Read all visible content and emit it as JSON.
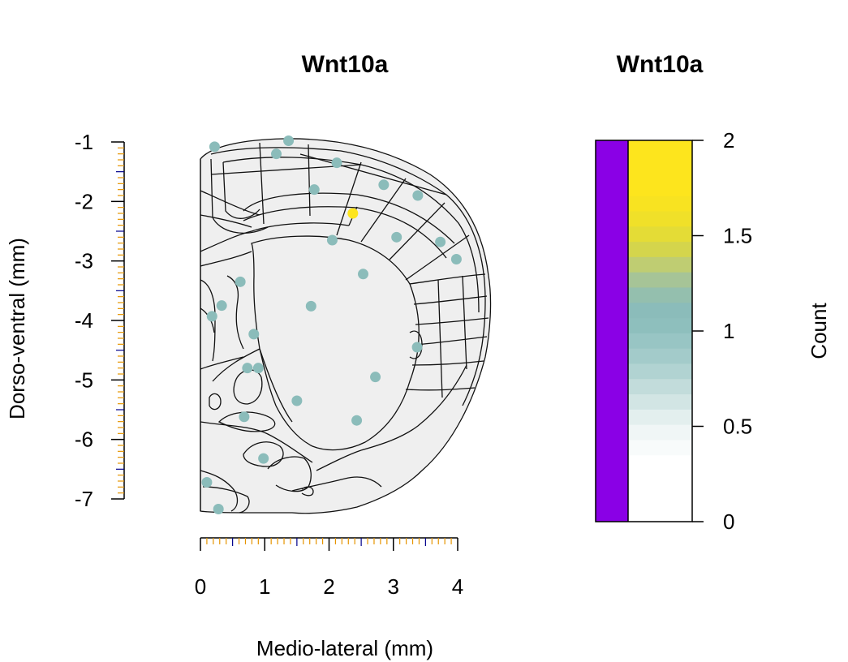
{
  "chart_data": [
    {
      "type": "scatter",
      "title": "Wnt10a",
      "xlabel": "Medio-lateral (mm)",
      "ylabel": "Dorso-ventral (mm)",
      "xlim": [
        0,
        4
      ],
      "ylim": [
        -7,
        -1
      ],
      "xticks": [
        0,
        1,
        2,
        3,
        4
      ],
      "yticks": [
        -1,
        -2,
        -3,
        -4,
        -5,
        -6,
        -7
      ],
      "point_colors": {
        "1": "#8bbcba",
        "2": "#fde51d"
      },
      "points": [
        {
          "x": 0.22,
          "y": -1.08,
          "count": 1
        },
        {
          "x": 1.18,
          "y": -1.2,
          "count": 1
        },
        {
          "x": 1.37,
          "y": -0.98,
          "count": 1
        },
        {
          "x": 2.12,
          "y": -1.35,
          "count": 1
        },
        {
          "x": 1.77,
          "y": -1.8,
          "count": 1
        },
        {
          "x": 2.85,
          "y": -1.72,
          "count": 1
        },
        {
          "x": 3.38,
          "y": -1.9,
          "count": 1
        },
        {
          "x": 2.37,
          "y": -2.2,
          "count": 2
        },
        {
          "x": 2.05,
          "y": -2.65,
          "count": 1
        },
        {
          "x": 3.05,
          "y": -2.6,
          "count": 1
        },
        {
          "x": 3.73,
          "y": -2.68,
          "count": 1
        },
        {
          "x": 3.98,
          "y": -2.97,
          "count": 1
        },
        {
          "x": 2.53,
          "y": -3.22,
          "count": 1
        },
        {
          "x": 0.62,
          "y": -3.35,
          "count": 1
        },
        {
          "x": 1.72,
          "y": -3.76,
          "count": 1
        },
        {
          "x": 0.33,
          "y": -3.75,
          "count": 1
        },
        {
          "x": 0.18,
          "y": -3.93,
          "count": 1
        },
        {
          "x": 0.83,
          "y": -4.23,
          "count": 1
        },
        {
          "x": 3.37,
          "y": -4.45,
          "count": 1
        },
        {
          "x": 0.73,
          "y": -4.8,
          "count": 1
        },
        {
          "x": 0.9,
          "y": -4.8,
          "count": 1
        },
        {
          "x": 2.72,
          "y": -4.95,
          "count": 1
        },
        {
          "x": 1.5,
          "y": -5.35,
          "count": 1
        },
        {
          "x": 0.68,
          "y": -5.62,
          "count": 1
        },
        {
          "x": 2.43,
          "y": -5.68,
          "count": 1
        },
        {
          "x": 0.98,
          "y": -6.32,
          "count": 1
        },
        {
          "x": 0.1,
          "y": -6.72,
          "count": 1
        },
        {
          "x": 0.28,
          "y": -7.17,
          "count": 1
        }
      ]
    },
    {
      "type": "heatmap",
      "title": "Wnt10a",
      "zlabel": "Count",
      "zlim": [
        0,
        2
      ],
      "ticks": [
        "0",
        "0.5",
        "1",
        "1.5",
        "2"
      ],
      "left_bar_color": "#8a00e6",
      "bands": [
        {
          "from": 0.0,
          "to": 0.35,
          "color": "#ffffff"
        },
        {
          "from": 0.35,
          "to": 0.43,
          "color": "#f8fbfb"
        },
        {
          "from": 0.43,
          "to": 0.51,
          "color": "#f0f6f6"
        },
        {
          "from": 0.51,
          "to": 0.59,
          "color": "#e3efee"
        },
        {
          "from": 0.59,
          "to": 0.67,
          "color": "#d2e5e4"
        },
        {
          "from": 0.67,
          "to": 0.75,
          "color": "#c2dcdb"
        },
        {
          "from": 0.75,
          "to": 0.83,
          "color": "#b1d3d2"
        },
        {
          "from": 0.83,
          "to": 0.91,
          "color": "#a3cbca"
        },
        {
          "from": 0.91,
          "to": 0.99,
          "color": "#98c5c4"
        },
        {
          "from": 0.99,
          "to": 1.07,
          "color": "#8ebfbd"
        },
        {
          "from": 1.07,
          "to": 1.15,
          "color": "#8bbcba"
        },
        {
          "from": 1.15,
          "to": 1.23,
          "color": "#94bfae"
        },
        {
          "from": 1.23,
          "to": 1.31,
          "color": "#a6c497"
        },
        {
          "from": 1.31,
          "to": 1.39,
          "color": "#bfcd72"
        },
        {
          "from": 1.39,
          "to": 1.47,
          "color": "#d4d54c"
        },
        {
          "from": 1.47,
          "to": 1.55,
          "color": "#e4dc36"
        },
        {
          "from": 1.55,
          "to": 1.63,
          "color": "#f0e029"
        },
        {
          "from": 1.63,
          "to": 1.71,
          "color": "#f8e321"
        },
        {
          "from": 1.71,
          "to": 2.0,
          "color": "#fde51d"
        }
      ]
    }
  ]
}
